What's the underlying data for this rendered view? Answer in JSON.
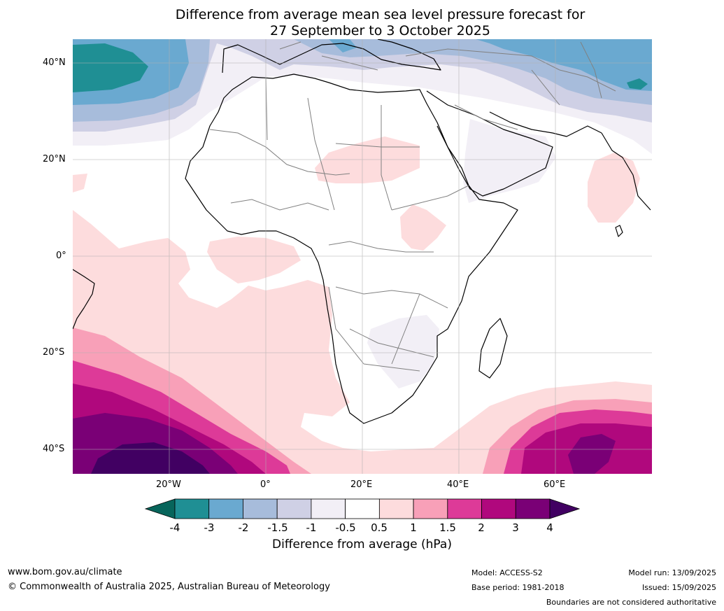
{
  "title": {
    "line1": "Difference from average mean sea level pressure forecast for",
    "line2": "27 September to 3 October 2025"
  },
  "axes": {
    "lat_labels": [
      "40°N",
      "20°N",
      "0°",
      "20°S",
      "40°S"
    ],
    "lon_labels": [
      "20°W",
      "0°",
      "20°E",
      "40°E",
      "60°E"
    ]
  },
  "colorbar": {
    "label": "Difference from average (hPa)",
    "ticks": [
      "-4",
      "-3",
      "-2",
      "-1.5",
      "-1",
      "-0.5",
      "0.5",
      "1",
      "1.5",
      "2",
      "3",
      "4"
    ],
    "colors": [
      "#1f8f94",
      "#6aa9d0",
      "#a7bcdb",
      "#cfd0e5",
      "#f2eff6",
      "#ffffff",
      "#fddcdd",
      "#f8a0b8",
      "#dd3a98",
      "#b0087d",
      "#7a0076"
    ],
    "extend_low": "#07655b",
    "extend_high": "#410062"
  },
  "footer": {
    "website": "www.bom.gov.au/climate",
    "copyright": "© Commonwealth of Australia 2025, Australian Bureau of Meteorology",
    "model": "Model: ACCESS-S2",
    "base_period": "Base period: 1981-2018",
    "model_run": "Model run: 13/09/2025",
    "issued": "Issued: 15/09/2025",
    "disclaimer": "Boundaries are not considered authoritative"
  }
}
